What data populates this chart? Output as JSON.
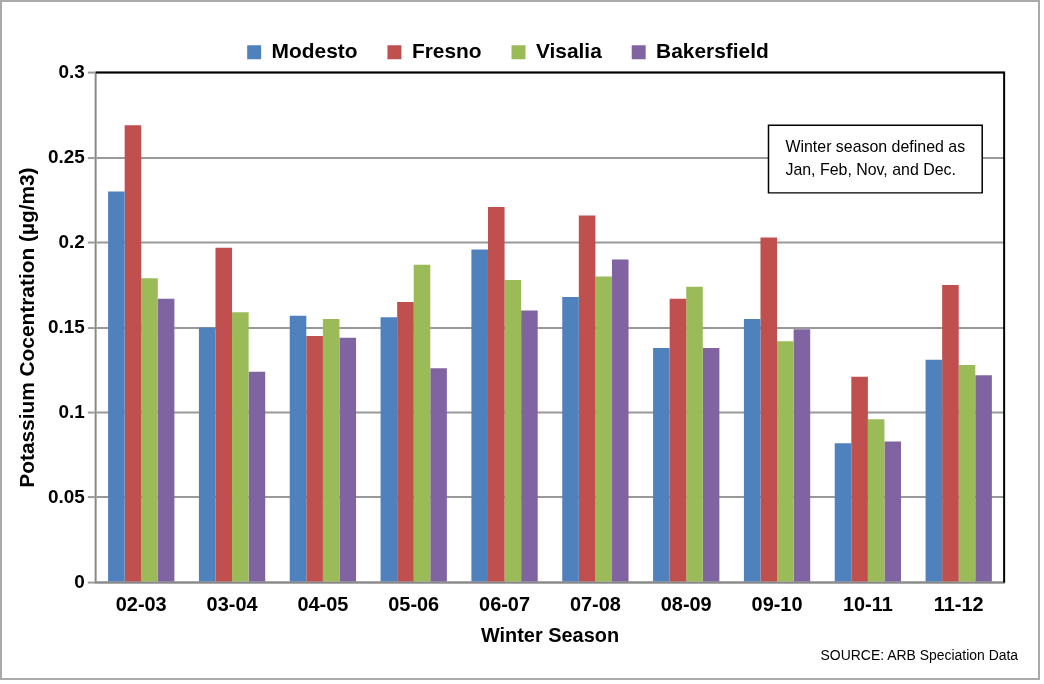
{
  "chart_data": {
    "type": "bar",
    "ylabel": "Potassium Cocentration (µg/m3)",
    "xlabel": "Winter Season",
    "categories": [
      "02-03",
      "03-04",
      "04-05",
      "05-06",
      "06-07",
      "07-08",
      "08-09",
      "09-10",
      "10-11",
      "11-12"
    ],
    "series": [
      {
        "name": "Modesto",
        "color": "#4f81bd",
        "values": [
          0.23,
          0.15,
          0.157,
          0.156,
          0.196,
          0.168,
          0.138,
          0.155,
          0.082,
          0.131
        ]
      },
      {
        "name": "Fresno",
        "color": "#c0504d",
        "values": [
          0.269,
          0.197,
          0.145,
          0.165,
          0.221,
          0.216,
          0.167,
          0.203,
          0.121,
          0.175
        ]
      },
      {
        "name": "Visalia",
        "color": "#9bbb59",
        "values": [
          0.179,
          0.159,
          0.155,
          0.187,
          0.178,
          0.18,
          0.174,
          0.142,
          0.096,
          0.128
        ]
      },
      {
        "name": "Bakersfield",
        "color": "#8064a2",
        "values": [
          0.167,
          0.124,
          0.144,
          0.126,
          0.16,
          0.19,
          0.138,
          0.149,
          0.083,
          0.122
        ]
      }
    ],
    "ylim": [
      0,
      0.3
    ],
    "yticks": [
      0,
      0.05,
      0.1,
      0.15,
      0.2,
      0.25,
      0.3
    ],
    "grid": "y",
    "legend": "top",
    "annotations": [
      "Winter season defined as\nJan, Feb, Nov, and Dec.",
      "SOURCE: ARB Speciation Data"
    ]
  }
}
